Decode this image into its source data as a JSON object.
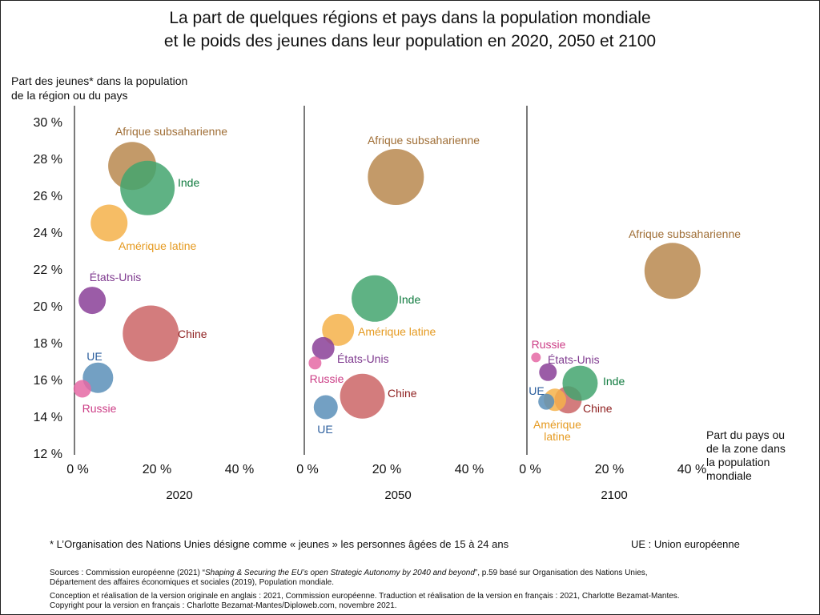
{
  "chart_data": {
    "type": "scatter",
    "title_lines": [
      "La part de quelques régions et pays dans la population mondiale",
      "et le poids des jeunes dans leur population en 2020, 2050 et 2100"
    ],
    "ylabel_lines": [
      "Part des jeunes* dans la population",
      "de la région ou du pays"
    ],
    "xlabel_lines": [
      "Part du pays ou",
      "de la zone dans",
      "la population",
      "mondiale"
    ],
    "yticks": [
      12,
      14,
      16,
      18,
      20,
      22,
      24,
      26,
      28,
      30
    ],
    "ytick_labels": [
      "12 %",
      "14 %",
      "16 %",
      "18 %",
      "20 %",
      "22 %",
      "24 %",
      "26 %",
      "28 %",
      "30 %"
    ],
    "ylim": [
      12,
      30
    ],
    "xticks": [
      0,
      20,
      40
    ],
    "xtick_labels": [
      "0 %",
      "20 %",
      "40 %"
    ],
    "xlim": [
      0,
      47
    ],
    "colors": {
      "afrique": "#b9884f",
      "inde": "#43a46e",
      "amerique": "#f5b14a",
      "etats_unis": "#8a3f98",
      "chine": "#cb6566",
      "ue": "#5a8fb8",
      "russie": "#e568a4"
    },
    "label_colors": {
      "afrique": "#a06f37",
      "inde": "#0f7a3e",
      "amerique": "#e59a20",
      "etats_unis": "#7f3a8f",
      "chine": "#8f2020",
      "ue": "#2c5f9e",
      "russie": "#cc3d86"
    },
    "panels": [
      {
        "year": "2020",
        "points": [
          {
            "key": "afrique",
            "label": "Afrique subsaharienne",
            "x": 14,
            "y": 27.6
          },
          {
            "key": "inde",
            "label": "Inde",
            "x": 17.7,
            "y": 26.4
          },
          {
            "key": "amerique",
            "label": "Amérique latine",
            "x": 8.4,
            "y": 24.5
          },
          {
            "key": "etats_unis",
            "label": "États-Unis",
            "x": 4.3,
            "y": 20.3
          },
          {
            "key": "chine",
            "label": "Chine",
            "x": 18.5,
            "y": 18.5
          },
          {
            "key": "ue",
            "label": "UE",
            "x": 5.7,
            "y": 16.1
          },
          {
            "key": "russie",
            "label": "Russie",
            "x": 1.9,
            "y": 15.5
          }
        ]
      },
      {
        "year": "2050",
        "points": [
          {
            "key": "afrique",
            "label": "Afrique subsaharienne",
            "x": 22.2,
            "y": 27.0
          },
          {
            "key": "inde",
            "label": "Inde",
            "x": 17.1,
            "y": 20.4
          },
          {
            "key": "amerique",
            "label": "Amérique latine",
            "x": 8.2,
            "y": 18.7
          },
          {
            "key": "etats_unis",
            "label": "États-Unis",
            "x": 4.6,
            "y": 17.7
          },
          {
            "key": "chine",
            "label": "Chine",
            "x": 14.1,
            "y": 15.1
          },
          {
            "key": "ue",
            "label": "UE",
            "x": 5.2,
            "y": 14.5
          },
          {
            "key": "russie",
            "label": "Russie",
            "x": 2.6,
            "y": 16.9
          }
        ]
      },
      {
        "year": "2100",
        "points": [
          {
            "key": "afrique",
            "label": "Afrique subsaharienne",
            "x": 35.3,
            "y": 21.9
          },
          {
            "key": "inde",
            "label": "Inde",
            "x": 12.9,
            "y": 15.8
          },
          {
            "key": "amerique",
            "label": "Amérique latine",
            "x": 6.8,
            "y": 14.9
          },
          {
            "key": "etats_unis",
            "label": "États-Unis",
            "x": 5.1,
            "y": 16.4
          },
          {
            "key": "chine",
            "label": "Chine",
            "x": 10.0,
            "y": 14.9
          },
          {
            "key": "ue",
            "label": "UE",
            "x": 4.7,
            "y": 14.8
          },
          {
            "key": "russie",
            "label": "Russie",
            "x": 2.2,
            "y": 17.2
          }
        ]
      }
    ]
  },
  "footnote": "* L’Organisation des Nations Unies désigne comme « jeunes » les personnes âgées de 15 à 24 ans",
  "abbreviation": "UE : Union européenne",
  "sources": {
    "prefix": "Sources : Commission européenne (2021) “",
    "italic": "Shaping & Securing the EU’s open Strategic Autonomy by 2040 and beyond",
    "suffix": "”, p.59 basé sur Organisation des Nations Unies,",
    "line2": "Département des affaires économiques et sociales (2019), Population mondiale."
  },
  "credits": {
    "line1": "Conception et réalisation de la version originale en anglais : 2021, Commission européenne. Traduction et réalisation de la version en français : 2021, Charlotte Bezamat-Mantes.",
    "line2": "Copyright pour la version en français : Charlotte Bezamat-Mantes/Diploweb.com, novembre 2021."
  }
}
